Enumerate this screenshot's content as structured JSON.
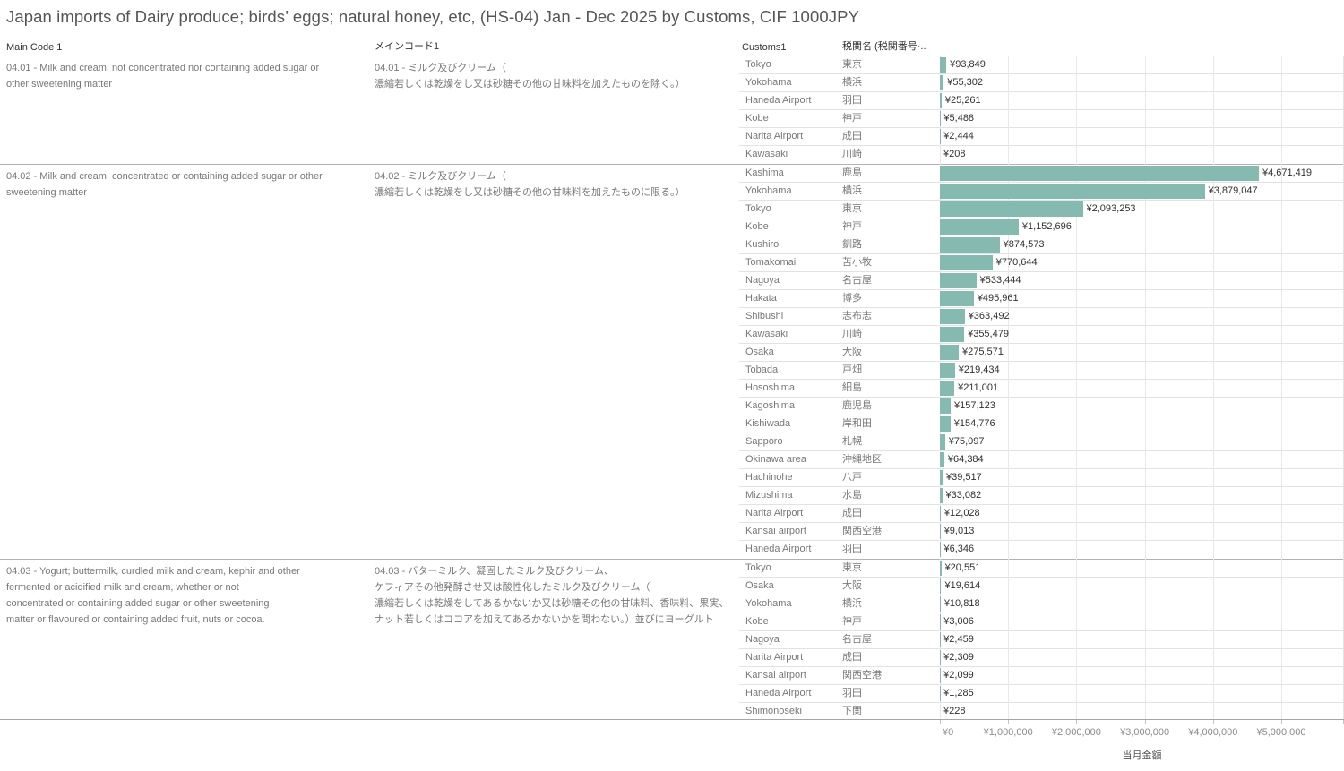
{
  "title": "Japan imports of Dairy produce; birds’ eggs; natural honey, etc, (HS-04) Jan - Dec 2025 by Customs, CIF 1000JPY",
  "columns": {
    "main_code_en": "Main Code 1",
    "main_code_ja": "メインコード1",
    "customs_en": "Customs1",
    "customs_ja": "税関名 (税関番号·.."
  },
  "chart_data": {
    "type": "bar",
    "orientation": "horizontal",
    "title": "Japan imports of Dairy produce; birds’ eggs; natural honey, etc, (HS-04) Jan - Dec 2025 by Customs, CIF 1000JPY",
    "xlabel": "当月金額",
    "unit": "CIF 1000JPY",
    "x_tick_labels": [
      "¥0",
      "¥1,000,000",
      "¥2,000,000",
      "¥3,000,000",
      "¥4,000,000",
      "¥5,000,000"
    ],
    "xlim": [
      0,
      5918000
    ],
    "gridline_interval": 1000000,
    "grid": true,
    "bar_color": "#85bab1",
    "groups": [
      {
        "code": "04.01",
        "desc_en": "04.01 - Milk and cream, not concentrated nor containing added sugar or\nother sweetening matter",
        "desc_ja": "04.01 - ミルク及びクリーム（\n濃縮若しくは乾燥をし又は砂糖その他の甘味料を加えたものを除く。）",
        "rows": [
          {
            "customs_en": "Tokyo",
            "customs_ja": "東京",
            "value": 93849,
            "label": "¥93,849"
          },
          {
            "customs_en": "Yokohama",
            "customs_ja": "横浜",
            "value": 55302,
            "label": "¥55,302"
          },
          {
            "customs_en": "Haneda Airport",
            "customs_ja": "羽田",
            "value": 25261,
            "label": "¥25,261"
          },
          {
            "customs_en": "Kobe",
            "customs_ja": "神戸",
            "value": 5488,
            "label": "¥5,488"
          },
          {
            "customs_en": "Narita Airport",
            "customs_ja": "成田",
            "value": 2444,
            "label": "¥2,444"
          },
          {
            "customs_en": "Kawasaki",
            "customs_ja": "川崎",
            "value": 208,
            "label": "¥208"
          }
        ]
      },
      {
        "code": "04.02",
        "desc_en": "04.02 - Milk and cream, concentrated or containing added sugar or other\nsweetening matter",
        "desc_ja": "04.02 - ミルク及びクリーム（\n濃縮若しくは乾燥をし又は砂糖その他の甘味料を加えたものに限る。）",
        "rows": [
          {
            "customs_en": "Kashima",
            "customs_ja": "鹿島",
            "value": 4671419,
            "label": "¥4,671,419"
          },
          {
            "customs_en": "Yokohama",
            "customs_ja": "横浜",
            "value": 3879047,
            "label": "¥3,879,047"
          },
          {
            "customs_en": "Tokyo",
            "customs_ja": "東京",
            "value": 2093253,
            "label": "¥2,093,253"
          },
          {
            "customs_en": "Kobe",
            "customs_ja": "神戸",
            "value": 1152696,
            "label": "¥1,152,696"
          },
          {
            "customs_en": "Kushiro",
            "customs_ja": "釧路",
            "value": 874573,
            "label": "¥874,573"
          },
          {
            "customs_en": "Tomakomai",
            "customs_ja": "苫小牧",
            "value": 770644,
            "label": "¥770,644"
          },
          {
            "customs_en": "Nagoya",
            "customs_ja": "名古屋",
            "value": 533444,
            "label": "¥533,444"
          },
          {
            "customs_en": "Hakata",
            "customs_ja": "博多",
            "value": 495961,
            "label": "¥495,961"
          },
          {
            "customs_en": "Shibushi",
            "customs_ja": "志布志",
            "value": 363492,
            "label": "¥363,492"
          },
          {
            "customs_en": "Kawasaki",
            "customs_ja": "川崎",
            "value": 355479,
            "label": "¥355,479"
          },
          {
            "customs_en": "Osaka",
            "customs_ja": "大阪",
            "value": 275571,
            "label": "¥275,571"
          },
          {
            "customs_en": "Tobada",
            "customs_ja": "戸畑",
            "value": 219434,
            "label": "¥219,434"
          },
          {
            "customs_en": "Hososhima",
            "customs_ja": "細島",
            "value": 211001,
            "label": "¥211,001"
          },
          {
            "customs_en": "Kagoshima",
            "customs_ja": "鹿児島",
            "value": 157123,
            "label": "¥157,123"
          },
          {
            "customs_en": "Kishiwada",
            "customs_ja": "岸和田",
            "value": 154776,
            "label": "¥154,776"
          },
          {
            "customs_en": "Sapporo",
            "customs_ja": "札幌",
            "value": 75097,
            "label": "¥75,097"
          },
          {
            "customs_en": "Okinawa area",
            "customs_ja": "沖縄地区",
            "value": 64384,
            "label": "¥64,384"
          },
          {
            "customs_en": "Hachinohe",
            "customs_ja": "八戸",
            "value": 39517,
            "label": "¥39,517"
          },
          {
            "customs_en": "Mizushima",
            "customs_ja": "水島",
            "value": 33082,
            "label": "¥33,082"
          },
          {
            "customs_en": "Narita Airport",
            "customs_ja": "成田",
            "value": 12028,
            "label": "¥12,028"
          },
          {
            "customs_en": "Kansai airport",
            "customs_ja": "関西空港",
            "value": 9013,
            "label": "¥9,013"
          },
          {
            "customs_en": "Haneda Airport",
            "customs_ja": "羽田",
            "value": 6346,
            "label": "¥6,346"
          }
        ]
      },
      {
        "code": "04.03",
        "desc_en": "04.03 - Yogurt; buttermilk, curdled milk and cream, kephir and other\nfermented or acidified milk and cream, whether or not\nconcentrated or containing added sugar or other sweetening\nmatter or flavoured or containing added fruit, nuts or cocoa.",
        "desc_ja": "04.03 - バターミルク、凝固したミルク及びクリーム、\nケフィアその他発酵させ又は酸性化したミルク及びクリーム（\n濃縮若しくは乾燥をしてあるかないか又は砂糖その他の甘味料、香味料、果実、\nナット若しくはココアを加えてあるかないかを問わない。）並びにヨーグルト",
        "rows": [
          {
            "customs_en": "Tokyo",
            "customs_ja": "東京",
            "value": 20551,
            "label": "¥20,551"
          },
          {
            "customs_en": "Osaka",
            "customs_ja": "大阪",
            "value": 19614,
            "label": "¥19,614"
          },
          {
            "customs_en": "Yokohama",
            "customs_ja": "横浜",
            "value": 10818,
            "label": "¥10,818"
          },
          {
            "customs_en": "Kobe",
            "customs_ja": "神戸",
            "value": 3006,
            "label": "¥3,006"
          },
          {
            "customs_en": "Nagoya",
            "customs_ja": "名古屋",
            "value": 2459,
            "label": "¥2,459"
          },
          {
            "customs_en": "Narita Airport",
            "customs_ja": "成田",
            "value": 2309,
            "label": "¥2,309"
          },
          {
            "customs_en": "Kansai airport",
            "customs_ja": "関西空港",
            "value": 2099,
            "label": "¥2,099"
          },
          {
            "customs_en": "Haneda Airport",
            "customs_ja": "羽田",
            "value": 1285,
            "label": "¥1,285"
          },
          {
            "customs_en": "Shimonoseki",
            "customs_ja": "下関",
            "value": 228,
            "label": "¥228"
          }
        ]
      }
    ]
  }
}
